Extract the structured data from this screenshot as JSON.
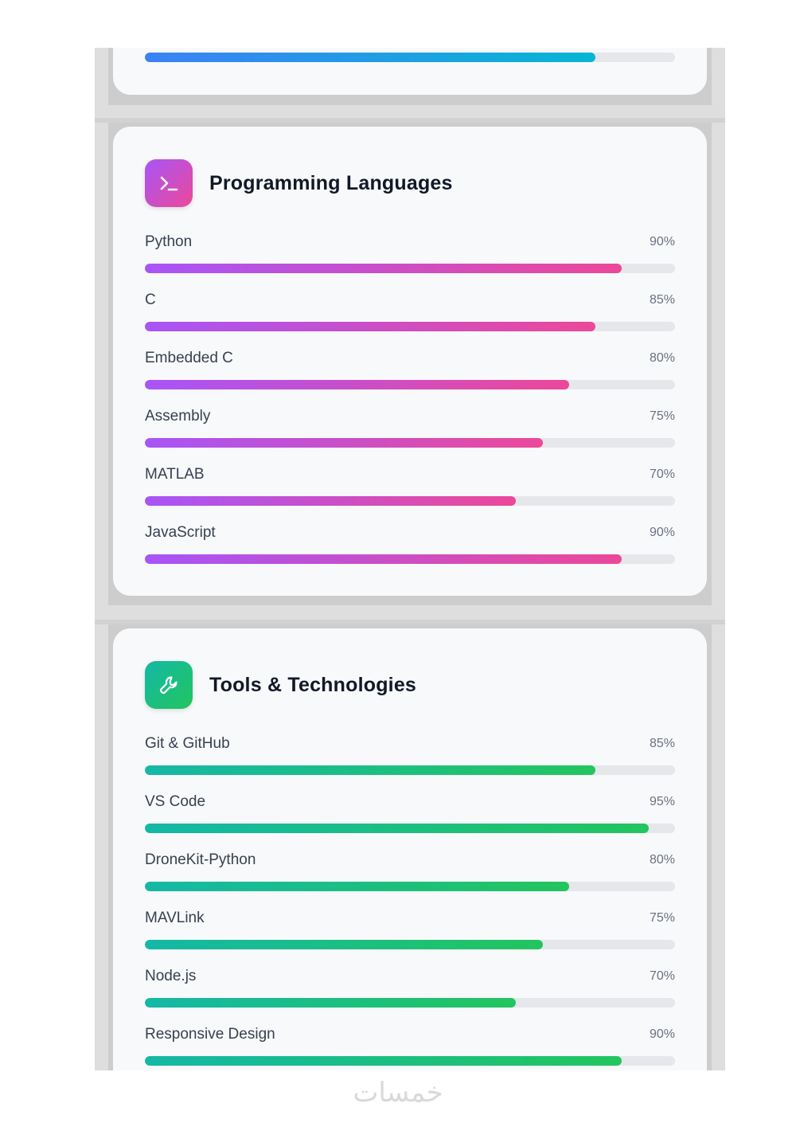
{
  "top_card": {
    "bar": {
      "percent": 85,
      "color": "blue"
    }
  },
  "programming": {
    "title": "Programming Languages",
    "icon": "terminal-icon",
    "accent": [
      "#a855f7",
      "#ec4899"
    ],
    "skills": [
      {
        "name": "Python",
        "percent_label": "90%",
        "percent": 90
      },
      {
        "name": "C",
        "percent_label": "85%",
        "percent": 85
      },
      {
        "name": "Embedded C",
        "percent_label": "80%",
        "percent": 80
      },
      {
        "name": "Assembly",
        "percent_label": "75%",
        "percent": 75
      },
      {
        "name": "MATLAB",
        "percent_label": "70%",
        "percent": 70
      },
      {
        "name": "JavaScript",
        "percent_label": "90%",
        "percent": 90
      }
    ]
  },
  "tools": {
    "title": "Tools & Technologies",
    "icon": "wrench-icon",
    "accent": [
      "#14b8a6",
      "#22c55e"
    ],
    "skills": [
      {
        "name": "Git & GitHub",
        "percent_label": "85%",
        "percent": 85
      },
      {
        "name": "VS Code",
        "percent_label": "95%",
        "percent": 95
      },
      {
        "name": "DroneKit-Python",
        "percent_label": "80%",
        "percent": 80
      },
      {
        "name": "MAVLink",
        "percent_label": "75%",
        "percent": 75
      },
      {
        "name": "Node.js",
        "percent_label": "70%",
        "percent": 70
      },
      {
        "name": "Responsive Design",
        "percent_label": "90%",
        "percent": 90
      }
    ]
  },
  "watermark": "خمسات"
}
